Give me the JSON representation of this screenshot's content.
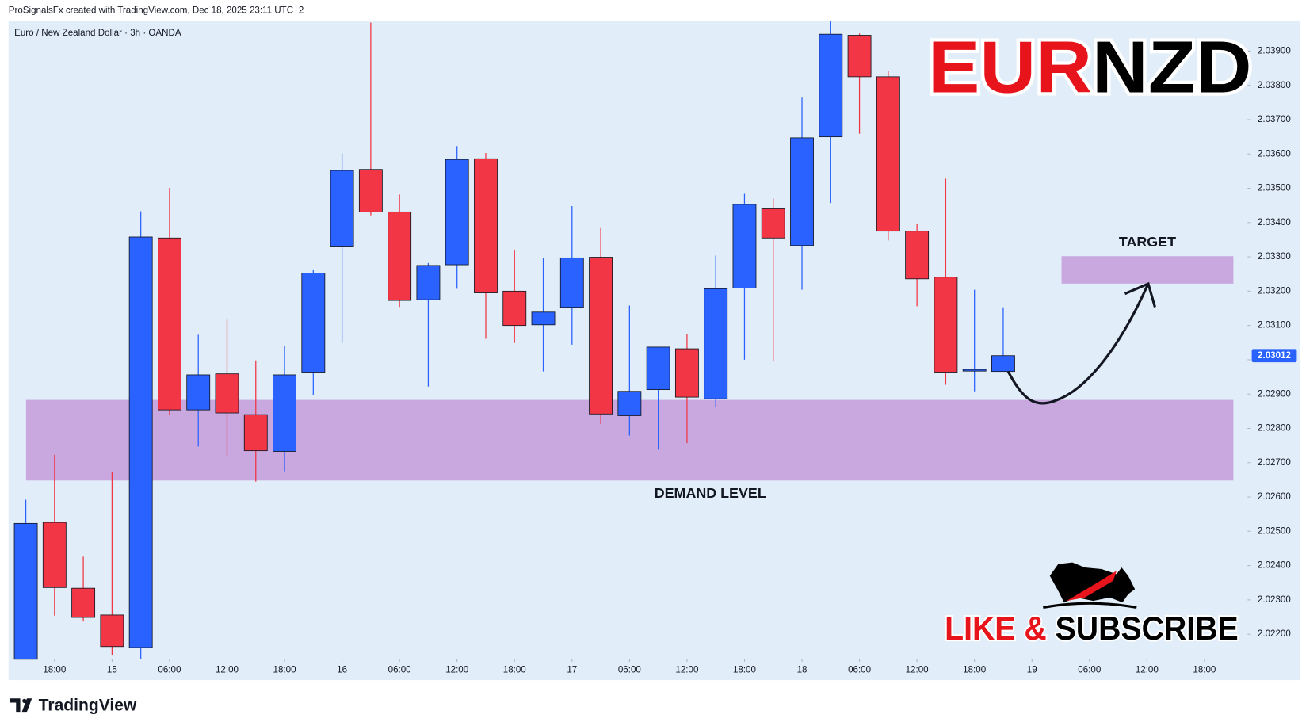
{
  "chart_data": {
    "type": "candlestick",
    "header": "ProSignalsFx created with TradingView.com, Dec 18, 2025 23:11 UTC+2",
    "symbol_label": "Euro / New Zealand Dollar · 3h · OANDA",
    "title": [
      "EUR",
      "NZD"
    ],
    "title_colors": [
      "#e8141b",
      "#000000"
    ],
    "footer": "TradingView",
    "call_to_action": [
      "LIKE &",
      "SUBSCRIBE"
    ],
    "call_to_action_colors": [
      "#e8141b",
      "#000000"
    ],
    "up_color": "#2962ff",
    "down_color": "#f23645",
    "open": [
      2.02127,
      2.02526,
      2.02334,
      2.02256,
      2.02161,
      2.03355,
      2.02854,
      2.02959,
      2.0284,
      2.02733,
      2.02964,
      2.03329,
      2.03555,
      2.03431,
      2.03175,
      2.03277,
      2.03586,
      2.032,
      2.03102,
      2.03153,
      2.03299,
      2.02837,
      2.02913,
      2.03032,
      2.02886,
      2.03209,
      2.0344,
      2.03333,
      2.0365,
      2.03946,
      2.03825,
      2.03375,
      2.03241,
      2.02969,
      2.02966
    ],
    "high": [
      2.02592,
      2.02723,
      2.02426,
      2.02672,
      2.03433,
      2.03501,
      2.03073,
      2.03117,
      2.02998,
      2.03039,
      2.03261,
      2.03601,
      2.03983,
      2.03482,
      2.03282,
      2.03623,
      2.03603,
      2.03319,
      2.03297,
      2.03448,
      2.03384,
      2.03158,
      2.03037,
      2.03076,
      2.03304,
      2.03484,
      2.0347,
      2.03764,
      2.03988,
      2.03951,
      2.03842,
      2.03397,
      2.03528,
      2.03204,
      2.03153
    ],
    "low": [
      2.02127,
      2.02254,
      2.02237,
      2.02139,
      2.02127,
      2.0284,
      2.02747,
      2.0272,
      2.02645,
      2.02675,
      2.02896,
      2.03049,
      2.03421,
      2.03154,
      2.02922,
      2.03207,
      2.03061,
      2.03049,
      2.02966,
      2.03044,
      2.02813,
      2.02779,
      2.02738,
      2.02757,
      2.02862,
      2.03,
      2.02995,
      2.03204,
      2.03457,
      2.03659,
      2.03348,
      2.03156,
      2.02927,
      2.02908,
      2.02966
    ],
    "close": [
      2.02523,
      2.02336,
      2.02249,
      2.02164,
      2.03358,
      2.02854,
      2.02956,
      2.02845,
      2.02735,
      2.02956,
      2.03253,
      2.03552,
      2.03431,
      2.03173,
      2.03275,
      2.03584,
      2.03195,
      2.031,
      2.03139,
      2.03297,
      2.02842,
      2.02908,
      2.03037,
      2.02891,
      2.03207,
      2.03453,
      2.03355,
      2.03647,
      2.03949,
      2.03825,
      2.03375,
      2.03236,
      2.02964,
      2.02972,
      2.03012
    ],
    "last_price": 2.03012,
    "last_price_color": "#2962ff",
    "zones": [
      {
        "label": "DEMAND LEVEL",
        "from": 2.02648,
        "to": 2.02883,
        "color": "#c9a8e0"
      },
      {
        "label": "TARGET",
        "from": 2.03222,
        "to": 2.03302,
        "color": "#c9a8e0"
      }
    ],
    "xlim": [
      -0.6,
      42.5
    ],
    "xticks": [
      {
        "value": 1,
        "label": "18:00"
      },
      {
        "value": 3,
        "label": "15"
      },
      {
        "value": 5,
        "label": "06:00"
      },
      {
        "value": 7,
        "label": "12:00"
      },
      {
        "value": 9,
        "label": "18:00"
      },
      {
        "value": 11,
        "label": "16"
      },
      {
        "value": 13,
        "label": "06:00"
      },
      {
        "value": 15,
        "label": "12:00"
      },
      {
        "value": 17,
        "label": "18:00"
      },
      {
        "value": 19,
        "label": "17"
      },
      {
        "value": 21,
        "label": "06:00"
      },
      {
        "value": 23,
        "label": "12:00"
      },
      {
        "value": 25,
        "label": "18:00"
      },
      {
        "value": 27,
        "label": "18"
      },
      {
        "value": 29,
        "label": "06:00"
      },
      {
        "value": 31,
        "label": "12:00"
      },
      {
        "value": 33,
        "label": "18:00"
      },
      {
        "value": 35,
        "label": "19"
      },
      {
        "value": 37,
        "label": "06:00"
      },
      {
        "value": 39,
        "label": "12:00"
      },
      {
        "value": 41,
        "label": "18:00"
      }
    ],
    "ylim": [
      2.02127,
      2.03988
    ],
    "yticks": [
      {
        "value": 2.022,
        "label": "2.02200"
      },
      {
        "value": 2.023,
        "label": "2.02300"
      },
      {
        "value": 2.024,
        "label": "2.02400"
      },
      {
        "value": 2.025,
        "label": "2.02500"
      },
      {
        "value": 2.026,
        "label": "2.02600"
      },
      {
        "value": 2.027,
        "label": "2.02700"
      },
      {
        "value": 2.028,
        "label": "2.02800"
      },
      {
        "value": 2.029,
        "label": "2.02900"
      },
      {
        "value": 2.03,
        "label": "2.03000"
      },
      {
        "value": 2.031,
        "label": "2.03100"
      },
      {
        "value": 2.032,
        "label": "2.03200"
      },
      {
        "value": 2.033,
        "label": "2.03300"
      },
      {
        "value": 2.034,
        "label": "2.03400"
      },
      {
        "value": 2.035,
        "label": "2.03500"
      },
      {
        "value": 2.036,
        "label": "2.03600"
      },
      {
        "value": 2.037,
        "label": "2.03700"
      },
      {
        "value": 2.038,
        "label": "2.03800"
      },
      {
        "value": 2.039,
        "label": "2.03900"
      }
    ],
    "grid": false
  }
}
